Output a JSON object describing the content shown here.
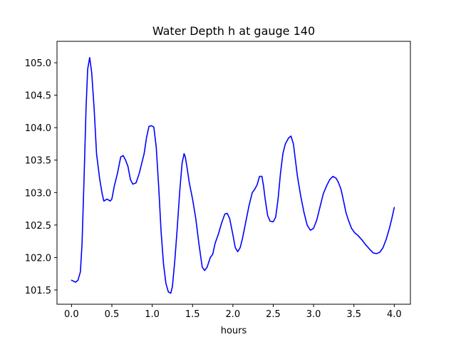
{
  "chart_data": {
    "type": "line",
    "title": "Water Depth h at gauge 140",
    "xlabel": "hours",
    "ylabel": "",
    "xlim": [
      -0.18,
      4.2
    ],
    "ylim": [
      101.28,
      105.33
    ],
    "xticks": [
      0.0,
      0.5,
      1.0,
      1.5,
      2.0,
      2.5,
      3.0,
      3.5,
      4.0
    ],
    "xtick_labels": [
      "0.0",
      "0.5",
      "1.0",
      "1.5",
      "2.0",
      "2.5",
      "3.0",
      "3.5",
      "4.0"
    ],
    "yticks": [
      101.5,
      102.0,
      102.5,
      103.0,
      103.5,
      104.0,
      104.5,
      105.0
    ],
    "ytick_labels": [
      "101.5",
      "102.0",
      "102.5",
      "103.0",
      "103.5",
      "104.0",
      "104.5",
      "105.0"
    ],
    "grid": false,
    "legend": "none",
    "series": [
      {
        "color": "#0000ff",
        "x": [
          0.0,
          0.05,
          0.08,
          0.11,
          0.13,
          0.155,
          0.18,
          0.2,
          0.225,
          0.25,
          0.28,
          0.31,
          0.35,
          0.38,
          0.4,
          0.44,
          0.48,
          0.5,
          0.53,
          0.57,
          0.61,
          0.64,
          0.67,
          0.7,
          0.73,
          0.76,
          0.8,
          0.84,
          0.87,
          0.9,
          0.93,
          0.96,
          0.99,
          1.02,
          1.05,
          1.08,
          1.11,
          1.14,
          1.17,
          1.2,
          1.23,
          1.25,
          1.28,
          1.31,
          1.34,
          1.37,
          1.395,
          1.41,
          1.43,
          1.46,
          1.5,
          1.54,
          1.58,
          1.62,
          1.65,
          1.68,
          1.72,
          1.75,
          1.78,
          1.82,
          1.86,
          1.9,
          1.93,
          1.96,
          2.0,
          2.03,
          2.06,
          2.09,
          2.12,
          2.16,
          2.2,
          2.24,
          2.27,
          2.3,
          2.33,
          2.36,
          2.38,
          2.4,
          2.43,
          2.46,
          2.5,
          2.53,
          2.56,
          2.59,
          2.62,
          2.65,
          2.69,
          2.72,
          2.75,
          2.77,
          2.8,
          2.84,
          2.88,
          2.92,
          2.96,
          3.0,
          3.04,
          3.08,
          3.12,
          3.16,
          3.2,
          3.24,
          3.28,
          3.31,
          3.34,
          3.37,
          3.4,
          3.43,
          3.47,
          3.51,
          3.55,
          3.6,
          3.65,
          3.7,
          3.74,
          3.78,
          3.82,
          3.86,
          3.9,
          3.94,
          3.97,
          4.0
        ],
        "y": [
          101.65,
          101.62,
          101.65,
          101.78,
          102.2,
          103.2,
          104.3,
          104.9,
          105.08,
          104.85,
          104.3,
          103.6,
          103.2,
          102.98,
          102.87,
          102.9,
          102.87,
          102.9,
          103.1,
          103.3,
          103.55,
          103.57,
          103.5,
          103.4,
          103.2,
          103.13,
          103.15,
          103.3,
          103.45,
          103.6,
          103.85,
          104.02,
          104.03,
          104.01,
          103.7,
          103.1,
          102.4,
          101.9,
          101.6,
          101.47,
          101.45,
          101.55,
          101.95,
          102.45,
          103.0,
          103.45,
          103.6,
          103.55,
          103.4,
          103.15,
          102.9,
          102.6,
          102.2,
          101.85,
          101.8,
          101.85,
          102.0,
          102.05,
          102.22,
          102.36,
          102.53,
          102.67,
          102.68,
          102.6,
          102.35,
          102.15,
          102.09,
          102.15,
          102.3,
          102.55,
          102.8,
          103.0,
          103.05,
          103.12,
          103.25,
          103.25,
          103.1,
          102.9,
          102.65,
          102.56,
          102.55,
          102.62,
          102.9,
          103.3,
          103.6,
          103.75,
          103.84,
          103.87,
          103.75,
          103.55,
          103.25,
          102.95,
          102.7,
          102.5,
          102.42,
          102.45,
          102.58,
          102.78,
          102.98,
          103.1,
          103.2,
          103.25,
          103.22,
          103.15,
          103.05,
          102.88,
          102.7,
          102.58,
          102.45,
          102.38,
          102.34,
          102.27,
          102.19,
          102.12,
          102.07,
          102.06,
          102.08,
          102.15,
          102.28,
          102.45,
          102.6,
          102.77
        ]
      }
    ]
  }
}
